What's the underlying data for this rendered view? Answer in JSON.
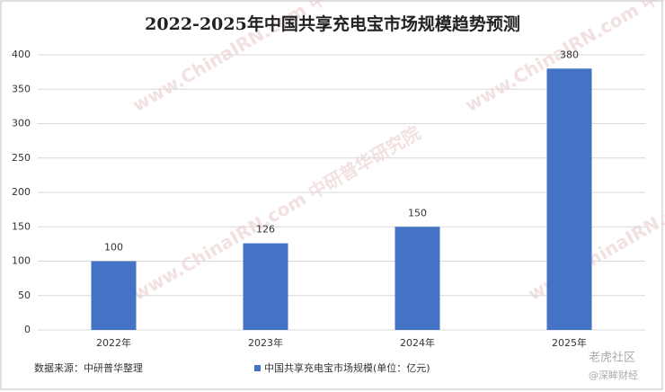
{
  "chart_data": {
    "type": "bar",
    "title": "2022-2025年中国共享充电宝市场规模趋势预测",
    "categories": [
      "2022年",
      "2023年",
      "2024年",
      "2025年"
    ],
    "series": [
      {
        "name": "中国共享充电宝市场规模(单位：亿元)",
        "color": "#4472c4",
        "values": [
          100,
          126,
          150,
          380
        ]
      }
    ],
    "ylim": [
      0,
      400
    ],
    "yticks": [
      0,
      50,
      100,
      150,
      200,
      250,
      300,
      350,
      400
    ],
    "grid": true,
    "source": "数据来源：中研普华整理",
    "watermark": "www.ChinaIRN.com 中研普华研究院",
    "brand": "老虎社区",
    "brand_handle": "@深眸财经"
  }
}
